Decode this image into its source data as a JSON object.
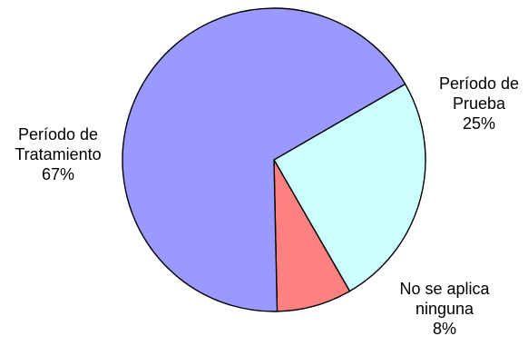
{
  "chart_data": {
    "type": "pie",
    "title": "",
    "slices": [
      {
        "label_lines": [
          "Período de",
          "Prueba",
          "25%"
        ],
        "value": 25,
        "color": "#ccffff"
      },
      {
        "label_lines": [
          "No se aplica",
          "ninguna",
          "8%"
        ],
        "value": 8,
        "color": "#ff8080"
      },
      {
        "label_lines": [
          "Período de",
          "Tratamiento",
          "67%"
        ],
        "value": 67,
        "color": "#9999ff"
      }
    ],
    "start_angle_deg": -30,
    "direction": "clockwise",
    "legend": "none"
  }
}
